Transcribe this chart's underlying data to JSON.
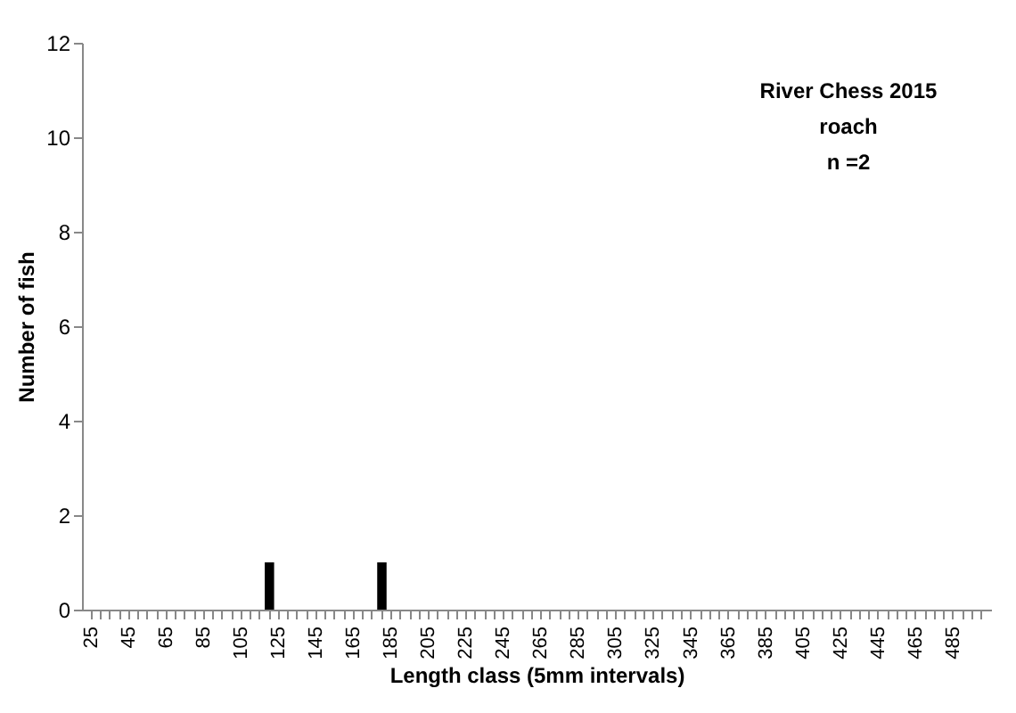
{
  "chart_data": {
    "type": "bar",
    "xlabel": "Length class  (5mm intervals)",
    "ylabel": "Number of fish",
    "annotations": [
      "River Chess 2015",
      "roach",
      "n =2"
    ],
    "categories": [
      "25",
      null,
      null,
      null,
      "45",
      null,
      null,
      null,
      "65",
      null,
      null,
      null,
      "85",
      null,
      null,
      null,
      "105",
      null,
      null,
      null,
      "125",
      null,
      null,
      null,
      "145",
      null,
      null,
      null,
      "165",
      null,
      null,
      null,
      "185",
      null,
      null,
      null,
      "205",
      null,
      null,
      null,
      "225",
      null,
      null,
      null,
      "245",
      null,
      null,
      null,
      "265",
      null,
      null,
      null,
      "285",
      null,
      null,
      null,
      "305",
      null,
      null,
      null,
      "325",
      null,
      null,
      null,
      "345",
      null,
      null,
      null,
      "365",
      null,
      null,
      null,
      "385",
      null,
      null,
      null,
      "405",
      null,
      null,
      null,
      "425",
      null,
      null,
      null,
      "445",
      null,
      null,
      null,
      "465",
      null,
      null,
      null,
      "485",
      null,
      null,
      null
    ],
    "values": [
      0,
      0,
      0,
      0,
      0,
      0,
      0,
      0,
      0,
      0,
      0,
      0,
      0,
      0,
      0,
      0,
      0,
      0,
      0,
      1,
      0,
      0,
      0,
      0,
      0,
      0,
      0,
      0,
      0,
      0,
      0,
      1,
      0,
      0,
      0,
      0,
      0,
      0,
      0,
      0,
      0,
      0,
      0,
      0,
      0,
      0,
      0,
      0,
      0,
      0,
      0,
      0,
      0,
      0,
      0,
      0,
      0,
      0,
      0,
      0,
      0,
      0,
      0,
      0,
      0,
      0,
      0,
      0,
      0,
      0,
      0,
      0,
      0,
      0,
      0,
      0,
      0,
      0,
      0,
      0,
      0,
      0,
      0,
      0,
      0,
      0,
      0,
      0,
      0,
      0,
      0,
      0,
      0,
      0,
      0,
      0
    ],
    "color": "#000000",
    "ylim": [
      0,
      12
    ],
    "yticks": [
      0,
      2,
      4,
      6,
      8,
      10,
      12
    ],
    "grid": false
  }
}
